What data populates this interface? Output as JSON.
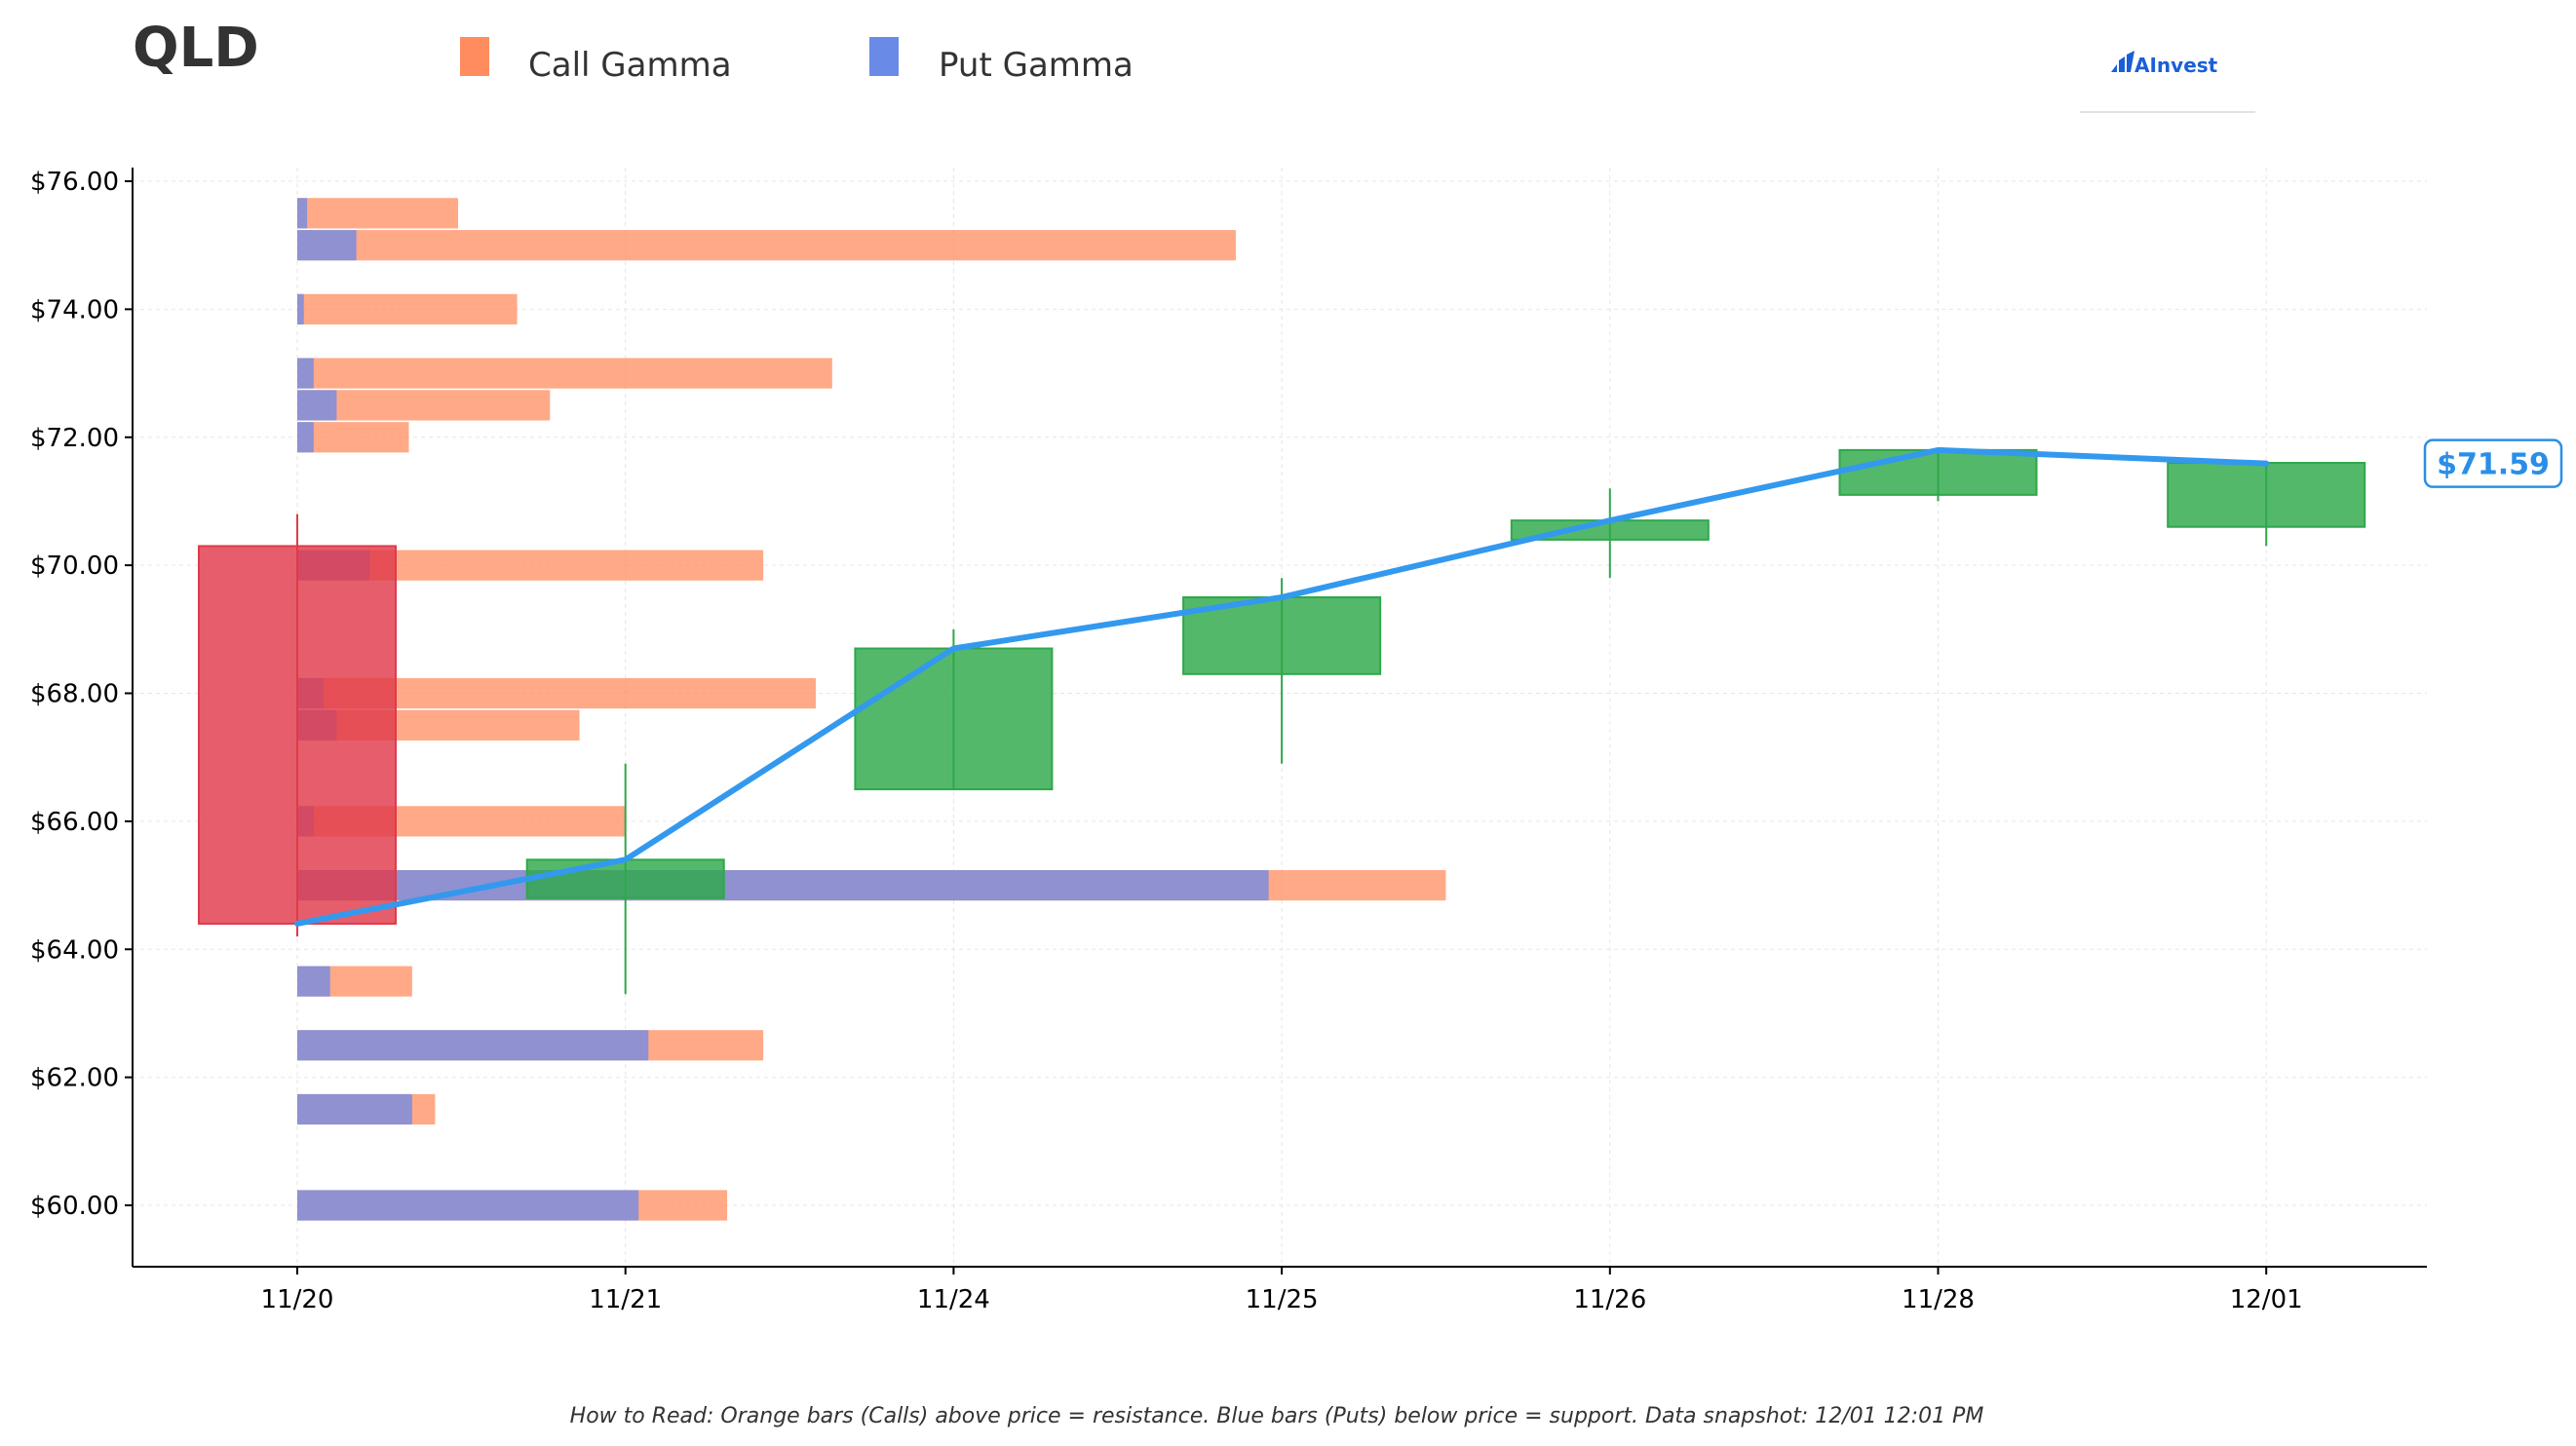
{
  "title": "QLD",
  "legend": [
    {
      "label": "Call Gamma",
      "color": "#ff8c5f"
    },
    {
      "label": "Put Gamma",
      "color": "#6a8ae8"
    }
  ],
  "logo": {
    "text": "AInvest",
    "color": "#1a5fd6"
  },
  "footer_note": "How to Read: Orange bars (Calls) above price = resistance. Blue bars (Puts) below price = support. Data snapshot: 12/01 12:01 PM",
  "chart_data": {
    "type": "candlestick+bar+line",
    "ylim": [
      59.0,
      76.0
    ],
    "y_ticks": [
      60,
      62,
      64,
      66,
      68,
      70,
      72,
      74,
      76
    ],
    "y_tick_labels": [
      "$60.00",
      "$62.00",
      "$64.00",
      "$66.00",
      "$68.00",
      "$70.00",
      "$72.00",
      "$74.00",
      "$76.00"
    ],
    "categories": [
      "11/20",
      "11/21",
      "11/24",
      "11/25",
      "11/26",
      "11/28",
      "12/01"
    ],
    "grid": true,
    "legend_position": "top",
    "colors": {
      "call": "#ff8c5f",
      "put": "#6a8ae8",
      "up_candle": "#2ea84a",
      "down_candle": "#e03a4a",
      "line": "#3399ee"
    },
    "candles": [
      {
        "date": "11/20",
        "open": 70.3,
        "high": 70.8,
        "low": 64.2,
        "close": 64.4
      },
      {
        "date": "11/21",
        "open": 64.8,
        "high": 66.9,
        "low": 63.3,
        "close": 65.4
      },
      {
        "date": "11/24",
        "open": 66.5,
        "high": 69.0,
        "low": 66.5,
        "close": 68.7
      },
      {
        "date": "11/25",
        "open": 68.3,
        "high": 69.8,
        "low": 66.9,
        "close": 69.5
      },
      {
        "date": "11/26",
        "open": 70.4,
        "high": 71.2,
        "low": 69.8,
        "close": 70.7
      },
      {
        "date": "11/28",
        "open": 71.1,
        "high": 71.8,
        "low": 71.0,
        "close": 71.8
      },
      {
        "date": "12/01",
        "open": 70.6,
        "high": 71.6,
        "low": 70.3,
        "close": 71.6
      }
    ],
    "close_line": [
      64.4,
      65.4,
      68.7,
      69.5,
      70.7,
      71.8,
      71.59
    ],
    "last_price": 71.59,
    "last_price_label": "$71.59",
    "gamma_bars": {
      "units": "relative (category-axis units from 11/20)",
      "strikes": [
        75.5,
        75.0,
        74.0,
        73.0,
        72.5,
        72.0,
        70.0,
        68.0,
        67.5,
        66.0,
        65.0,
        63.5,
        62.5,
        61.5,
        60.0
      ],
      "call": [
        0.49,
        2.86,
        0.67,
        1.63,
        0.77,
        0.34,
        1.42,
        1.58,
        0.86,
        1.0,
        3.5,
        0.35,
        1.42,
        0.42,
        1.31
      ],
      "put": [
        0.03,
        0.18,
        0.02,
        0.05,
        0.12,
        0.05,
        0.22,
        0.08,
        0.12,
        0.05,
        2.96,
        0.1,
        1.07,
        0.35,
        1.04
      ]
    }
  }
}
